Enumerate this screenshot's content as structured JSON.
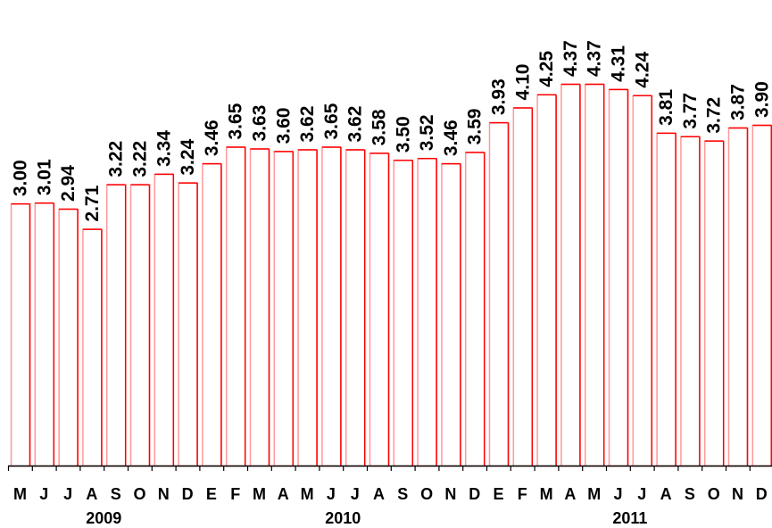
{
  "chart_data": {
    "type": "bar",
    "categories": [
      "M",
      "J",
      "J",
      "A",
      "S",
      "O",
      "N",
      "D",
      "E",
      "F",
      "M",
      "A",
      "M",
      "J",
      "J",
      "A",
      "S",
      "O",
      "N",
      "D",
      "E",
      "F",
      "M",
      "A",
      "M",
      "J",
      "J",
      "A",
      "S",
      "O",
      "N",
      "D"
    ],
    "values": [
      3.0,
      3.01,
      2.94,
      2.71,
      3.22,
      3.22,
      3.34,
      3.24,
      3.46,
      3.65,
      3.63,
      3.6,
      3.62,
      3.65,
      3.62,
      3.58,
      3.5,
      3.52,
      3.46,
      3.59,
      3.93,
      4.1,
      4.25,
      4.37,
      4.37,
      4.31,
      4.24,
      3.81,
      3.77,
      3.72,
      3.87,
      3.9
    ],
    "value_labels": [
      "3.00",
      "3.01",
      "2.94",
      "2.71",
      "3.22",
      "3.22",
      "3.34",
      "3.24",
      "3.46",
      "3.65",
      "3.63",
      "3.60",
      "3.62",
      "3.65",
      "3.62",
      "3.58",
      "3.50",
      "3.52",
      "3.46",
      "3.59",
      "3.93",
      "4.10",
      "4.25",
      "4.37",
      "4.37",
      "4.31",
      "4.24",
      "3.81",
      "3.77",
      "3.72",
      "3.87",
      "3.90"
    ],
    "years": [
      {
        "label": "2009",
        "from": 0,
        "to": 7
      },
      {
        "label": "2010",
        "from": 8,
        "to": 19
      },
      {
        "label": "2011",
        "from": 20,
        "to": 31
      }
    ],
    "ylim": [
      0,
      4.37
    ],
    "grid": false,
    "colors": {
      "bar_stroke": "#ff0000",
      "bar_stroke_light": "#ff9999",
      "bar_fill": "#ffffff",
      "axis": "#000000"
    }
  }
}
